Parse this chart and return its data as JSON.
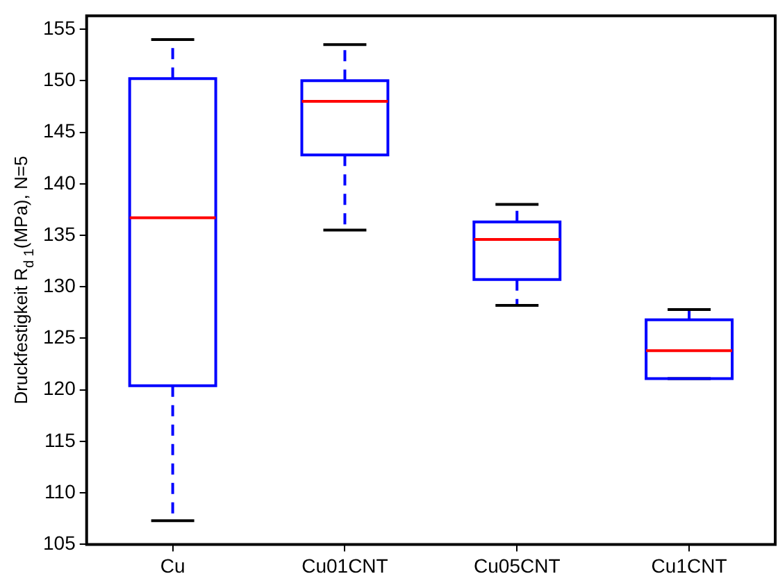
{
  "chart_data": {
    "type": "box",
    "ylabel": "Druckfestigkeit R$_{d 1}$(MPa), N=5",
    "categories": [
      "Cu",
      "Cu01CNT",
      "Cu05CNT",
      "Cu1CNT"
    ],
    "series": [
      {
        "color": "#0000ff",
        "boxes": [
          {
            "low": 107.3,
            "q1": 120.4,
            "median": 136.7,
            "q3": 150.2,
            "high": 154
          },
          {
            "low": 135.5,
            "q1": 142.8,
            "median": 148,
            "q3": 150,
            "high": 153.5
          },
          {
            "low": 128.2,
            "q1": 130.7,
            "median": 134.6,
            "q3": 136.3,
            "high": 138
          },
          {
            "low": 121.1,
            "q1": 121.1,
            "median": 123.8,
            "q3": 126.8,
            "high": 127.8
          }
        ]
      }
    ],
    "ylim": [
      105,
      156.3
    ],
    "yticks": [
      105,
      110,
      115,
      120,
      125,
      130,
      135,
      140,
      145,
      150,
      155
    ],
    "grid": false,
    "legend": false,
    "line_style": "dashed"
  }
}
